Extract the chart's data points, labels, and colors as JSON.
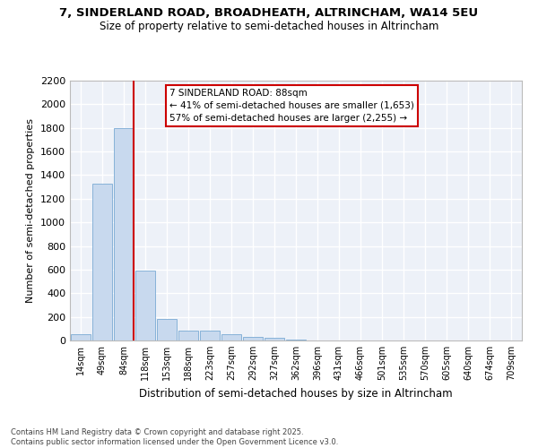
{
  "title_line1": "7, SINDERLAND ROAD, BROADHEATH, ALTRINCHAM, WA14 5EU",
  "title_line2": "Size of property relative to semi-detached houses in Altrincham",
  "xlabel": "Distribution of semi-detached houses by size in Altrincham",
  "ylabel": "Number of semi-detached properties",
  "categories": [
    "14sqm",
    "49sqm",
    "84sqm",
    "118sqm",
    "153sqm",
    "188sqm",
    "223sqm",
    "257sqm",
    "292sqm",
    "327sqm",
    "362sqm",
    "396sqm",
    "431sqm",
    "466sqm",
    "501sqm",
    "535sqm",
    "570sqm",
    "605sqm",
    "640sqm",
    "674sqm",
    "709sqm"
  ],
  "values": [
    50,
    1330,
    1800,
    590,
    180,
    80,
    80,
    50,
    30,
    20,
    5,
    2,
    1,
    0,
    0,
    0,
    0,
    0,
    0,
    0,
    0
  ],
  "bar_color": "#c8d9ee",
  "bar_edge_color": "#7aaad4",
  "vline_color": "#cc0000",
  "annotation_title": "7 SINDERLAND ROAD: 88sqm",
  "annotation_line1": "← 41% of semi-detached houses are smaller (1,653)",
  "annotation_line2": "57% of semi-detached houses are larger (2,255) →",
  "ylim": [
    0,
    2200
  ],
  "yticks": [
    0,
    200,
    400,
    600,
    800,
    1000,
    1200,
    1400,
    1600,
    1800,
    2000,
    2200
  ],
  "footer_line1": "Contains HM Land Registry data © Crown copyright and database right 2025.",
  "footer_line2": "Contains public sector information licensed under the Open Government Licence v3.0.",
  "bg_color": "#edf1f8",
  "fig_bg": "#ffffff"
}
